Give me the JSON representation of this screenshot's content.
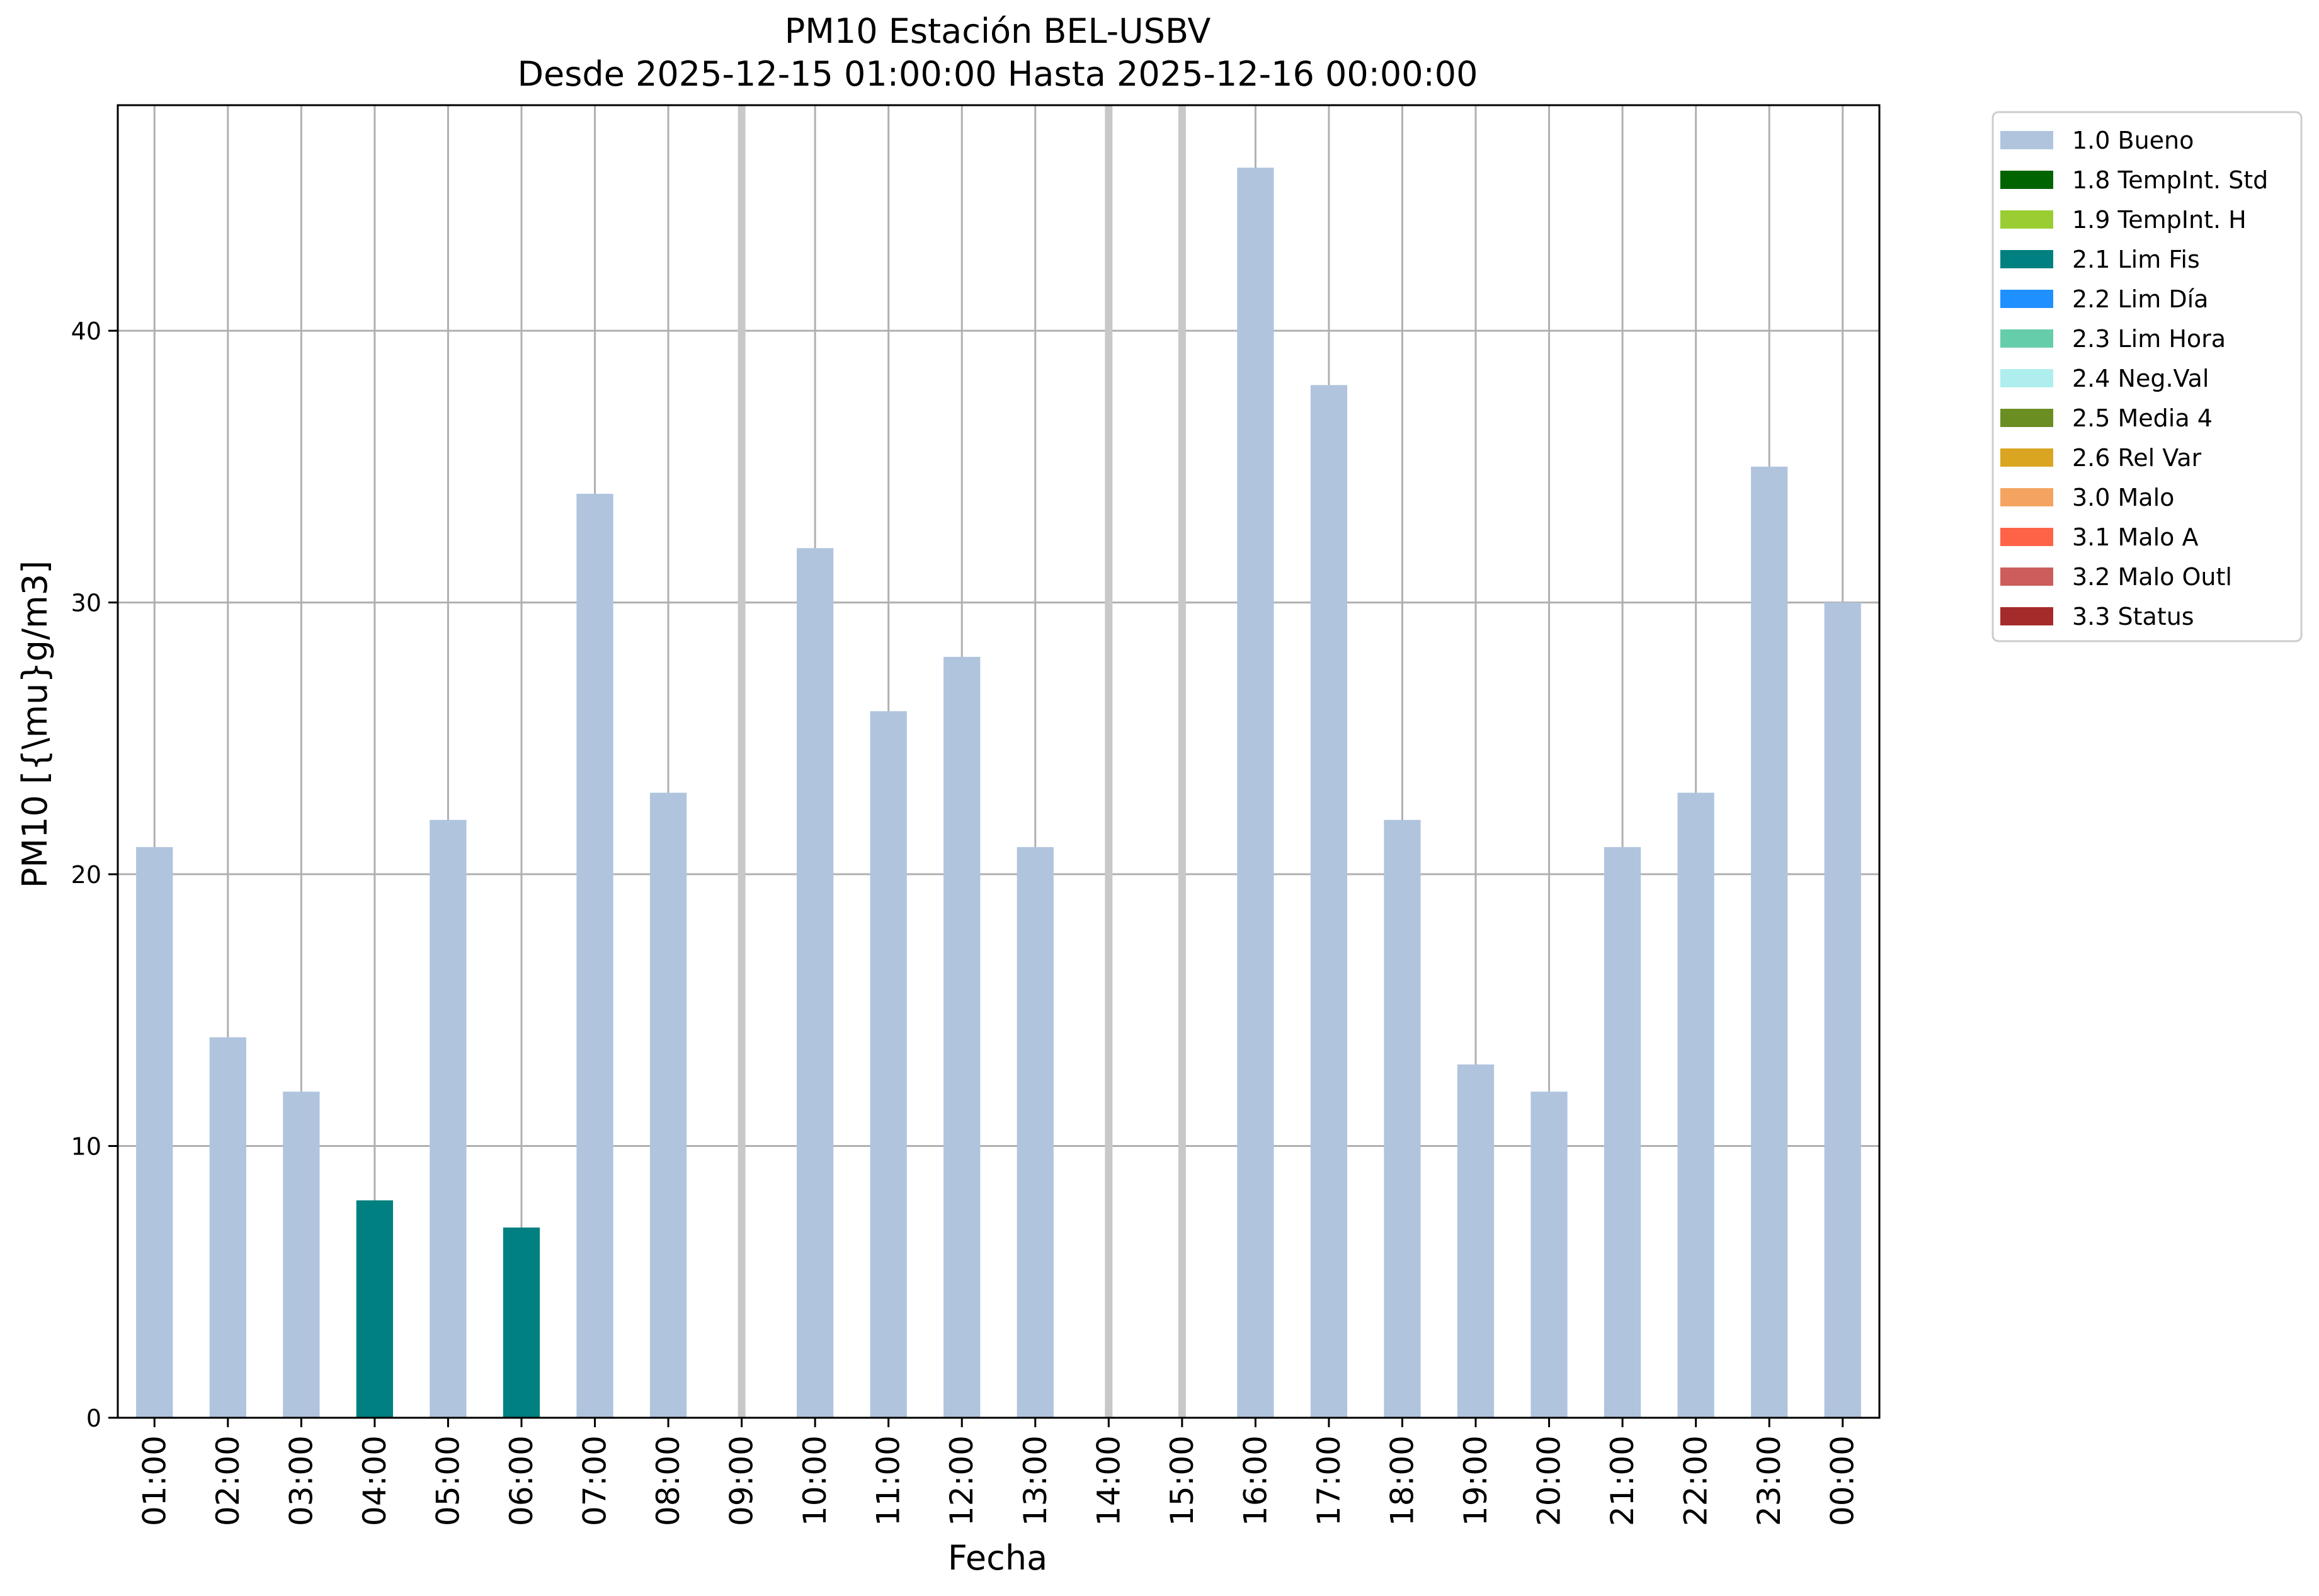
{
  "chart_data": {
    "type": "bar",
    "title": "PM10 Estación BEL-USBV",
    "subtitle": "Desde 2025-12-15 01:00:00 Hasta 2025-12-16 00:00:00",
    "xlabel": "Fecha",
    "ylabel": "PM10 [{\\mu}g/m3]",
    "ylim": [
      0,
      48.3
    ],
    "yticks": [
      0,
      10,
      20,
      30,
      40
    ],
    "grid": true,
    "legend_position": "outside-right",
    "categories": [
      "01:00",
      "02:00",
      "03:00",
      "04:00",
      "05:00",
      "06:00",
      "07:00",
      "08:00",
      "09:00",
      "10:00",
      "11:00",
      "12:00",
      "13:00",
      "14:00",
      "15:00",
      "16:00",
      "17:00",
      "18:00",
      "19:00",
      "20:00",
      "21:00",
      "22:00",
      "23:00",
      "00:00"
    ],
    "values": [
      21,
      14,
      12,
      8,
      22,
      7,
      34,
      23,
      null,
      32,
      26,
      28,
      21,
      null,
      null,
      46,
      38,
      22,
      13,
      12,
      21,
      23,
      35,
      30
    ],
    "flags": [
      "1.0",
      "1.0",
      "1.0",
      "2.1",
      "1.0",
      "2.1",
      "1.0",
      "1.0",
      null,
      "1.0",
      "1.0",
      "1.0",
      "1.0",
      null,
      null,
      "1.0",
      "1.0",
      "1.0",
      "1.0",
      "1.0",
      "1.0",
      "1.0",
      "1.0",
      "1.0"
    ],
    "missing_markers": [
      "09:00",
      "14:00",
      "15:00"
    ],
    "legend": [
      {
        "code": "1.0",
        "label": "1.0 Bueno",
        "color": "#b0c4de"
      },
      {
        "code": "1.8",
        "label": "1.8 TempInt. Std",
        "color": "#006400"
      },
      {
        "code": "1.9",
        "label": "1.9 TempInt. H",
        "color": "#9acd32"
      },
      {
        "code": "2.1",
        "label": "2.1 Lim Fis",
        "color": "#008080"
      },
      {
        "code": "2.2",
        "label": "2.2 Lim Día",
        "color": "#1e90ff"
      },
      {
        "code": "2.3",
        "label": "2.3 Lim Hora",
        "color": "#66cdaa"
      },
      {
        "code": "2.4",
        "label": "2.4 Neg.Val",
        "color": "#afeeee"
      },
      {
        "code": "2.5",
        "label": "2.5 Media 4",
        "color": "#6b8e23"
      },
      {
        "code": "2.6",
        "label": "2.6 Rel Var",
        "color": "#daa520"
      },
      {
        "code": "3.0",
        "label": "3.0 Malo",
        "color": "#f4a460"
      },
      {
        "code": "3.1",
        "label": "3.1 Malo A",
        "color": "#ff6347"
      },
      {
        "code": "3.2",
        "label": "3.2 Malo Outl",
        "color": "#cd5c5c"
      },
      {
        "code": "3.3",
        "label": "3.3 Status",
        "color": "#a52a2a"
      }
    ]
  }
}
